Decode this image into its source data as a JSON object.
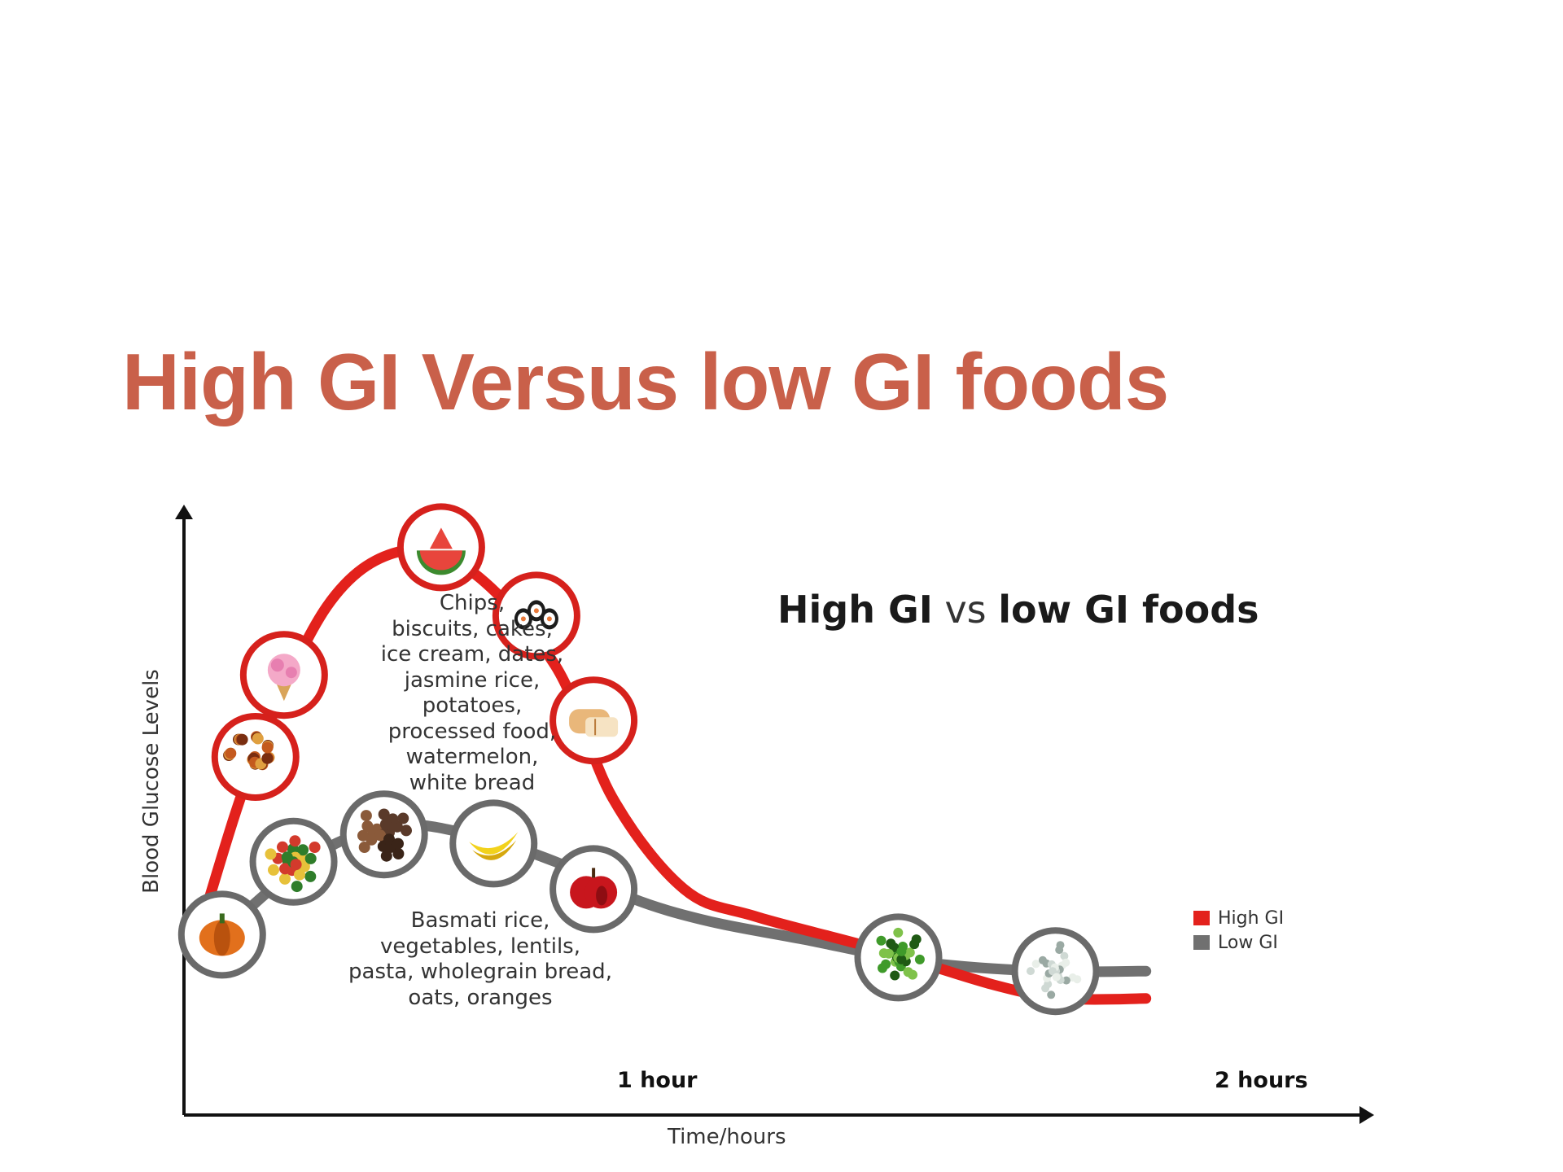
{
  "slide": {
    "title": "High GI Versus low GI foods"
  },
  "chart_data": {
    "type": "line",
    "title_parts": [
      {
        "text": "High GI",
        "weight": "bold"
      },
      {
        "text": " vs ",
        "weight": "normal"
      },
      {
        "text": "low GI foods",
        "weight": "bold"
      }
    ],
    "xlabel": "Time/hours",
    "ylabel": "Blood Glucose Levels",
    "x_ticks": [
      {
        "x": 1,
        "label": "1 hour"
      },
      {
        "x": 2,
        "label": "2 hours"
      }
    ],
    "xlim": [
      0,
      2.05
    ],
    "ylim": [
      0,
      100
    ],
    "grid": false,
    "legend_position": "bottom-right",
    "series": [
      {
        "name": "High GI",
        "color": "#e3211c",
        "x": [
          0.05,
          0.15,
          0.3,
          0.45,
          0.6,
          0.78,
          0.9,
          1.05,
          1.2,
          1.45,
          1.7,
          1.85,
          2.02
        ],
        "y": [
          18,
          50,
          83,
          95,
          91,
          70,
          41,
          21,
          15,
          8,
          0,
          -3,
          -3
        ],
        "markers": [
          {
            "x": 0.15,
            "y": 50,
            "icon": "spiced-food-icon"
          },
          {
            "x": 0.21,
            "y": 68,
            "icon": "ice-cream-icon"
          },
          {
            "x": 0.54,
            "y": 96,
            "icon": "watermelon-icon"
          },
          {
            "x": 0.74,
            "y": 81,
            "icon": "sushi-icon"
          },
          {
            "x": 0.86,
            "y": 58,
            "icon": "bread-icon"
          }
        ],
        "caption_lines": [
          "Chips,",
          "biscuits, cakes,",
          "ice cream, dates,",
          "jasmine rice,",
          "potatoes,",
          "processed food,",
          "watermelon,",
          "white bread"
        ]
      },
      {
        "name": "Low GI",
        "color": "#707070",
        "x": [
          0.03,
          0.15,
          0.3,
          0.45,
          0.6,
          0.78,
          0.94,
          1.1,
          1.3,
          1.55,
          1.8,
          2.02
        ],
        "y": [
          5,
          18,
          30,
          35,
          33,
          27,
          19,
          14,
          10,
          5,
          3,
          3
        ],
        "markers": [
          {
            "x": 0.08,
            "y": 11,
            "icon": "pumpkin-icon"
          },
          {
            "x": 0.23,
            "y": 27,
            "icon": "vegetables-icon"
          },
          {
            "x": 0.42,
            "y": 33,
            "icon": "lentils-icon"
          },
          {
            "x": 0.65,
            "y": 31,
            "icon": "banana-icon"
          },
          {
            "x": 0.86,
            "y": 21,
            "icon": "apple-icon"
          },
          {
            "x": 1.5,
            "y": 6,
            "icon": "peas-icon"
          },
          {
            "x": 1.83,
            "y": 3,
            "icon": "oats-icon"
          }
        ],
        "caption_lines": [
          "Basmati rice,",
          "vegetables, lentils,",
          "pasta, wholegrain bread,",
          "oats, oranges"
        ]
      }
    ]
  }
}
